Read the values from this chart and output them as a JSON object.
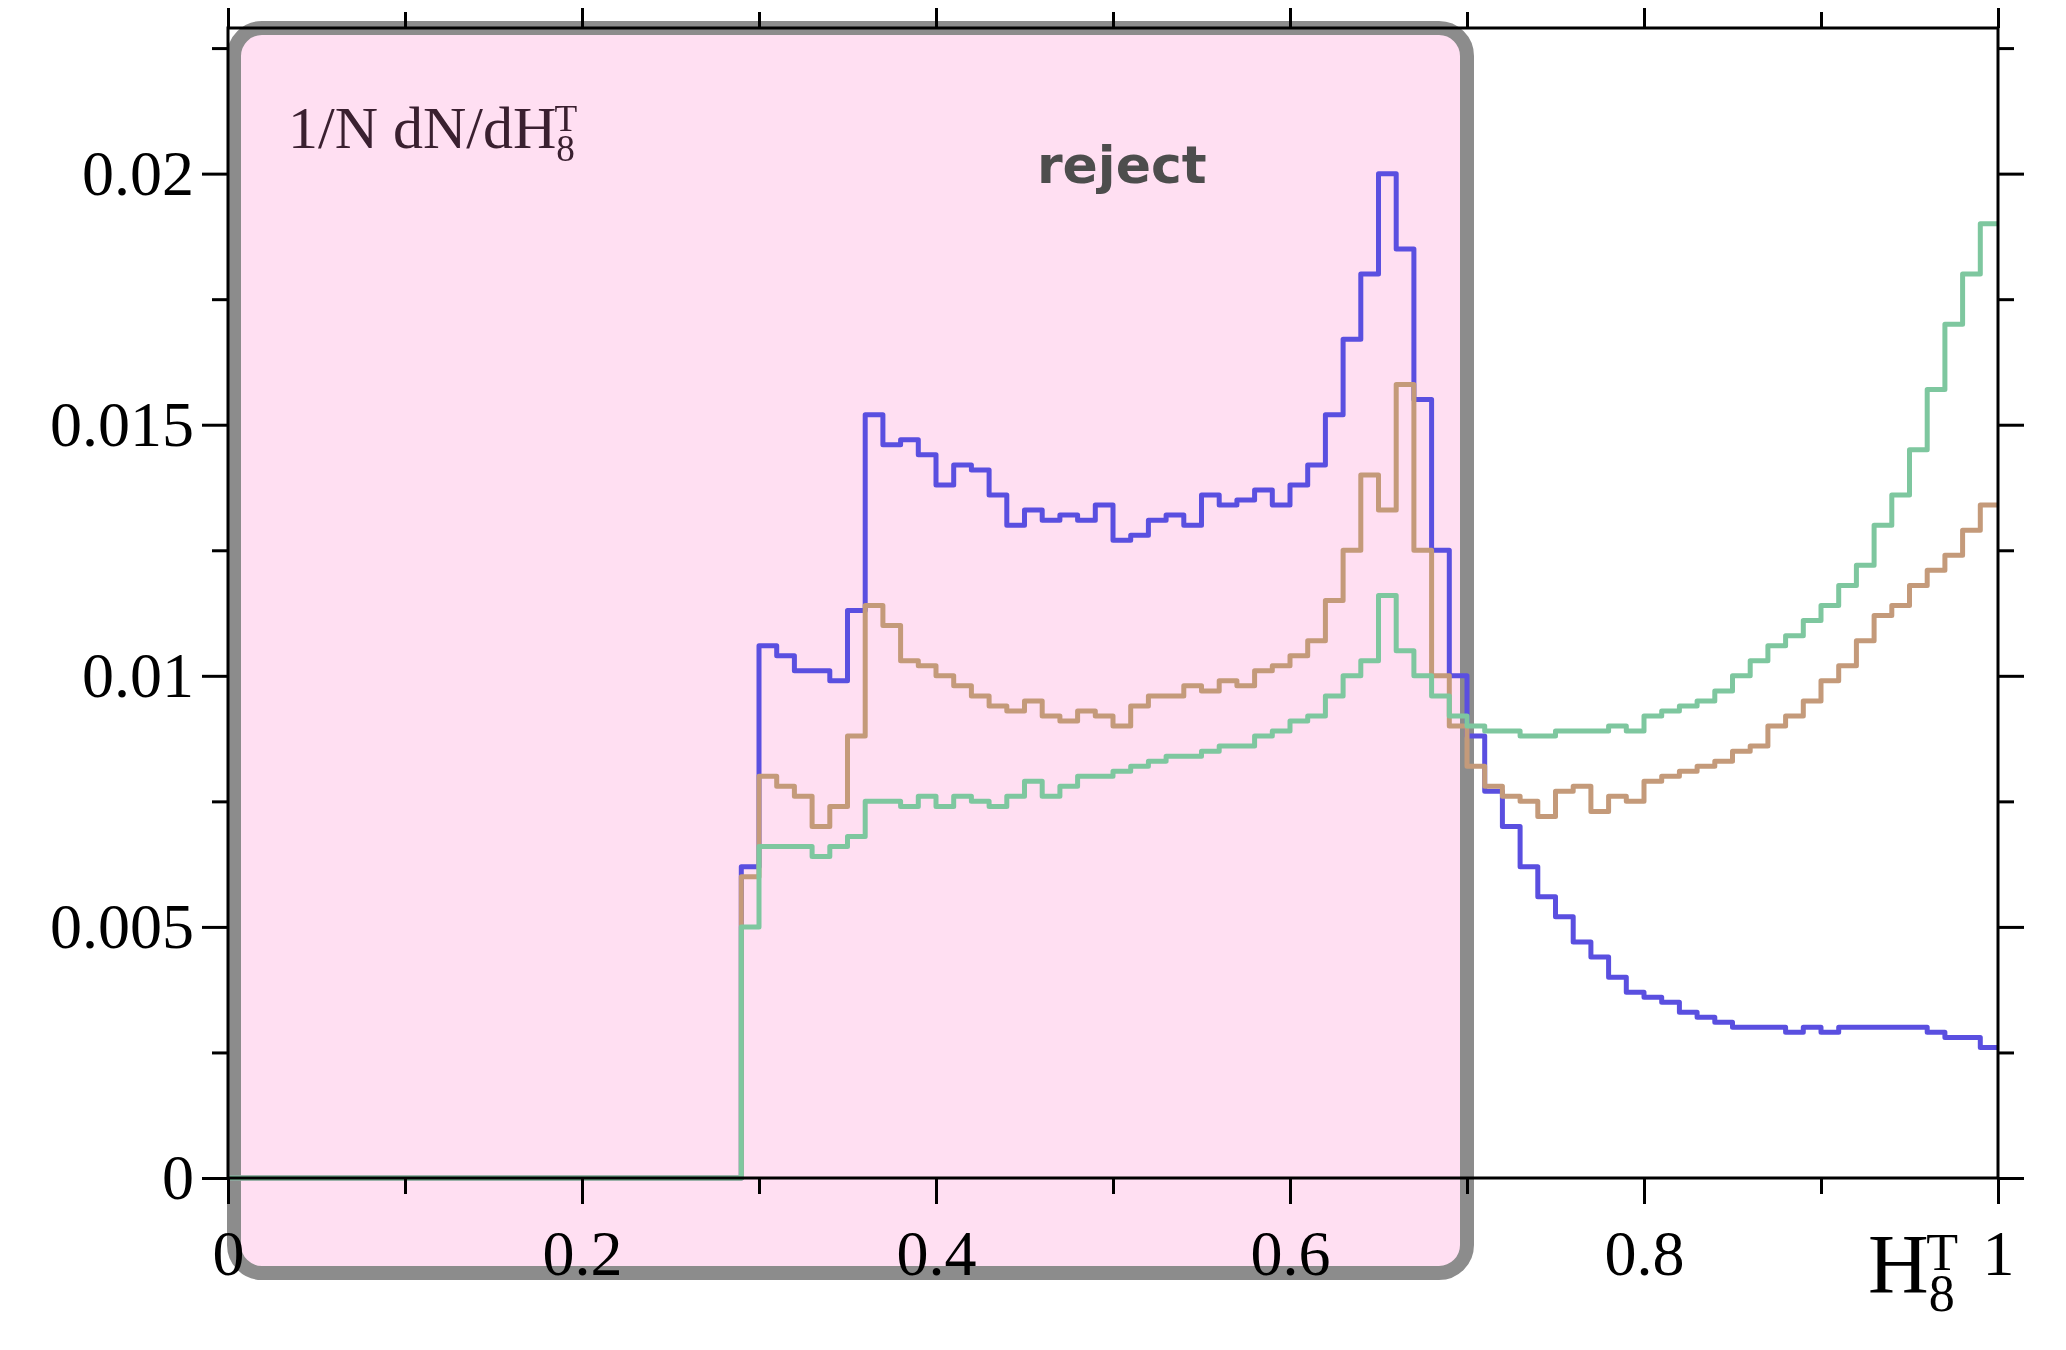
{
  "chart_data": {
    "type": "histogram",
    "xlabel": "H$_{8}$$^{T}$",
    "ylabel": "1/N dN/dH$_{8}$$^{T}$",
    "bins": [
      0,
      0.01,
      0.02,
      0.03,
      0.04,
      0.05,
      0.06,
      0.07,
      0.08,
      0.09,
      0.1,
      0.11,
      0.12,
      0.13,
      0.14,
      0.15,
      0.16,
      0.17,
      0.18,
      0.19,
      0.2,
      0.21,
      0.22,
      0.23,
      0.24,
      0.25,
      0.26,
      0.27,
      0.28,
      0.29,
      0.3,
      0.31,
      0.32,
      0.33,
      0.34,
      0.35,
      0.36,
      0.37,
      0.38,
      0.39,
      0.4,
      0.41,
      0.42,
      0.43,
      0.44,
      0.45,
      0.46,
      0.47,
      0.48,
      0.49,
      0.5,
      0.51,
      0.52,
      0.53,
      0.54,
      0.55,
      0.56,
      0.57,
      0.58,
      0.59,
      0.6,
      0.61,
      0.62,
      0.63,
      0.64,
      0.65,
      0.66,
      0.67,
      0.68,
      0.69,
      0.7,
      0.71,
      0.72,
      0.73,
      0.74,
      0.75,
      0.76,
      0.77,
      0.78,
      0.79,
      0.8,
      0.81,
      0.82,
      0.83,
      0.84,
      0.85,
      0.86,
      0.87,
      0.88,
      0.89,
      0.9,
      0.91,
      0.92,
      0.93,
      0.94,
      0.95,
      0.96,
      0.97,
      0.98,
      0.99,
      1
    ],
    "series": [
      {
        "color": "#5a4fe0",
        "values": [
          0,
          0,
          0,
          0,
          0,
          0,
          0,
          0,
          0,
          0,
          0,
          0,
          0,
          0,
          0,
          0,
          0,
          0,
          0,
          0,
          0,
          0,
          0,
          0,
          0,
          0,
          0,
          0,
          0,
          0.0062,
          0.0106,
          0.0104,
          0.0101,
          0.0101,
          0.0099,
          0.0113,
          0.0152,
          0.0146,
          0.0147,
          0.0144,
          0.0138,
          0.0142,
          0.0141,
          0.0136,
          0.013,
          0.0133,
          0.0131,
          0.0132,
          0.0131,
          0.0134,
          0.0127,
          0.0128,
          0.0131,
          0.0132,
          0.013,
          0.0136,
          0.0134,
          0.0135,
          0.0137,
          0.0134,
          0.0138,
          0.0142,
          0.0152,
          0.0167,
          0.018,
          0.02,
          0.0185,
          0.0155,
          0.0125,
          0.01,
          0.0088,
          0.0077,
          0.007,
          0.0062,
          0.0056,
          0.0052,
          0.0047,
          0.0044,
          0.004,
          0.0037,
          0.0036,
          0.0035,
          0.0033,
          0.0032,
          0.0031,
          0.003,
          0.003,
          0.003,
          0.0029,
          0.003,
          0.0029,
          0.003,
          0.003,
          0.003,
          0.003,
          0.003,
          0.0029,
          0.0028,
          0.0028,
          0.0026
        ]
      },
      {
        "color": "#c49a7a",
        "values": [
          0,
          0,
          0,
          0,
          0,
          0,
          0,
          0,
          0,
          0,
          0,
          0,
          0,
          0,
          0,
          0,
          0,
          0,
          0,
          0,
          0,
          0,
          0,
          0,
          0,
          0,
          0,
          0,
          0,
          0.006,
          0.008,
          0.0078,
          0.0076,
          0.007,
          0.0074,
          0.0088,
          0.0114,
          0.011,
          0.0103,
          0.0102,
          0.01,
          0.0098,
          0.0096,
          0.0094,
          0.0093,
          0.0095,
          0.0092,
          0.0091,
          0.0093,
          0.0092,
          0.009,
          0.0094,
          0.0096,
          0.0096,
          0.0098,
          0.0097,
          0.0099,
          0.0098,
          0.0101,
          0.0102,
          0.0104,
          0.0107,
          0.0115,
          0.0125,
          0.014,
          0.0133,
          0.0158,
          0.0125,
          0.01,
          0.009,
          0.0082,
          0.0078,
          0.0076,
          0.0075,
          0.0072,
          0.0077,
          0.0078,
          0.0073,
          0.0076,
          0.0075,
          0.0079,
          0.008,
          0.0081,
          0.0082,
          0.0083,
          0.0085,
          0.0086,
          0.009,
          0.0092,
          0.0095,
          0.0099,
          0.0102,
          0.0107,
          0.0112,
          0.0114,
          0.0118,
          0.0121,
          0.0124,
          0.0129,
          0.0134
        ]
      },
      {
        "color": "#7ec79f",
        "values": [
          0,
          0,
          0,
          0,
          0,
          0,
          0,
          0,
          0,
          0,
          0,
          0,
          0,
          0,
          0,
          0,
          0,
          0,
          0,
          0,
          0,
          0,
          0,
          0,
          0,
          0,
          0,
          0,
          0,
          0.005,
          0.0066,
          0.0066,
          0.0066,
          0.0064,
          0.0066,
          0.0068,
          0.0075,
          0.0075,
          0.0074,
          0.0076,
          0.0074,
          0.0076,
          0.0075,
          0.0074,
          0.0076,
          0.0079,
          0.0076,
          0.0078,
          0.008,
          0.008,
          0.0081,
          0.0082,
          0.0083,
          0.0084,
          0.0084,
          0.0085,
          0.0086,
          0.0086,
          0.0088,
          0.0089,
          0.0091,
          0.0092,
          0.0096,
          0.01,
          0.0103,
          0.0116,
          0.0105,
          0.01,
          0.0096,
          0.0092,
          0.009,
          0.0089,
          0.0089,
          0.0088,
          0.0088,
          0.0089,
          0.0089,
          0.0089,
          0.009,
          0.0089,
          0.0092,
          0.0093,
          0.0094,
          0.0095,
          0.0097,
          0.01,
          0.0103,
          0.0106,
          0.0108,
          0.0111,
          0.0114,
          0.0118,
          0.0122,
          0.013,
          0.0136,
          0.0145,
          0.0157,
          0.017,
          0.018,
          0.019
        ]
      }
    ],
    "xlim": [
      0,
      1
    ],
    "ylim": [
      0,
      0.0229
    ],
    "xticks": [
      0,
      {
        "value": 0.1,
        "label": null
      },
      0.2,
      {
        "value": 0.3,
        "label": null
      },
      0.4,
      {
        "value": 0.5,
        "label": null
      },
      0.6,
      {
        "value": 0.7,
        "label": null
      },
      0.8,
      {
        "value": 0.9,
        "label": null
      },
      1
    ],
    "yticks": [
      0,
      {
        "value": 0.0025,
        "label": null
      },
      0.005,
      {
        "value": 0.0075,
        "label": null
      },
      0.01,
      {
        "value": 0.0125,
        "label": null
      },
      0.015,
      {
        "value": 0.0175,
        "label": null
      },
      0.02,
      {
        "value": 0.0225,
        "label": null
      }
    ],
    "bands": [
      {
        "axis": "x",
        "from": 0,
        "to": 0.7,
        "label": "reject",
        "color": "#ffdff2"
      }
    ]
  }
}
